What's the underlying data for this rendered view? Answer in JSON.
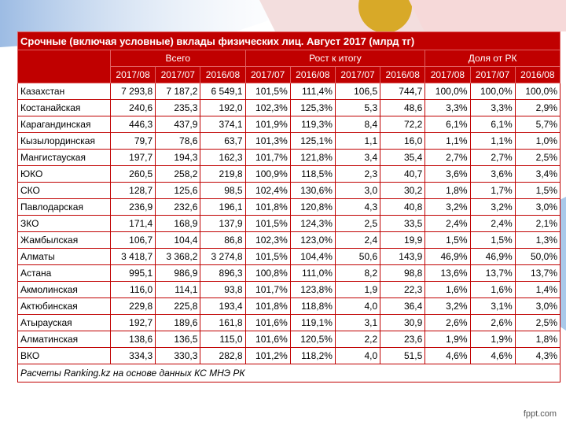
{
  "title": "Срочные (включая условные) вклады физических лиц. Август 2017 (млрд тг)",
  "table": {
    "group_headers": [
      "Всего",
      "Рост к итогу",
      "Доля от РК"
    ],
    "sub_headers": [
      "2017/08",
      "2017/07",
      "2016/08",
      "2017/07",
      "2016/08",
      "2017/07",
      "2016/08",
      "2017/08",
      "2017/07",
      "2016/08"
    ],
    "rows": [
      [
        "Казахстан",
        "7 293,8",
        "7 187,2",
        "6 549,1",
        "101,5%",
        "111,4%",
        "106,5",
        "744,7",
        "100,0%",
        "100,0%",
        "100,0%"
      ],
      [
        "Костанайская",
        "240,6",
        "235,3",
        "192,0",
        "102,3%",
        "125,3%",
        "5,3",
        "48,6",
        "3,3%",
        "3,3%",
        "2,9%"
      ],
      [
        "Карагандинская",
        "446,3",
        "437,9",
        "374,1",
        "101,9%",
        "119,3%",
        "8,4",
        "72,2",
        "6,1%",
        "6,1%",
        "5,7%"
      ],
      [
        "Кызылординская",
        "79,7",
        "78,6",
        "63,7",
        "101,3%",
        "125,1%",
        "1,1",
        "16,0",
        "1,1%",
        "1,1%",
        "1,0%"
      ],
      [
        "Мангистауская",
        "197,7",
        "194,3",
        "162,3",
        "101,7%",
        "121,8%",
        "3,4",
        "35,4",
        "2,7%",
        "2,7%",
        "2,5%"
      ],
      [
        "ЮКО",
        "260,5",
        "258,2",
        "219,8",
        "100,9%",
        "118,5%",
        "2,3",
        "40,7",
        "3,6%",
        "3,6%",
        "3,4%"
      ],
      [
        "СКО",
        "128,7",
        "125,6",
        "98,5",
        "102,4%",
        "130,6%",
        "3,0",
        "30,2",
        "1,8%",
        "1,7%",
        "1,5%"
      ],
      [
        "Павлодарская",
        "236,9",
        "232,6",
        "196,1",
        "101,8%",
        "120,8%",
        "4,3",
        "40,8",
        "3,2%",
        "3,2%",
        "3,0%"
      ],
      [
        "ЗКО",
        "171,4",
        "168,9",
        "137,9",
        "101,5%",
        "124,3%",
        "2,5",
        "33,5",
        "2,4%",
        "2,4%",
        "2,1%"
      ],
      [
        "Жамбылская",
        "106,7",
        "104,4",
        "86,8",
        "102,3%",
        "123,0%",
        "2,4",
        "19,9",
        "1,5%",
        "1,5%",
        "1,3%"
      ],
      [
        "Алматы",
        "3 418,7",
        "3 368,2",
        "3 274,8",
        "101,5%",
        "104,4%",
        "50,6",
        "143,9",
        "46,9%",
        "46,9%",
        "50,0%"
      ],
      [
        "Астана",
        "995,1",
        "986,9",
        "896,3",
        "100,8%",
        "111,0%",
        "8,2",
        "98,8",
        "13,6%",
        "13,7%",
        "13,7%"
      ],
      [
        "Акмолинская",
        "116,0",
        "114,1",
        "93,8",
        "101,7%",
        "123,8%",
        "1,9",
        "22,3",
        "1,6%",
        "1,6%",
        "1,4%"
      ],
      [
        "Актюбинская",
        "229,8",
        "225,8",
        "193,4",
        "101,8%",
        "118,8%",
        "4,0",
        "36,4",
        "3,2%",
        "3,1%",
        "3,0%"
      ],
      [
        "Атырауская",
        "192,7",
        "189,6",
        "161,8",
        "101,6%",
        "119,1%",
        "3,1",
        "30,9",
        "2,6%",
        "2,6%",
        "2,5%"
      ],
      [
        "Алматинская",
        "138,6",
        "136,5",
        "115,0",
        "101,6%",
        "120,5%",
        "2,2",
        "23,6",
        "1,9%",
        "1,9%",
        "1,8%"
      ],
      [
        "ВКО",
        "334,3",
        "330,3",
        "282,8",
        "101,2%",
        "118,2%",
        "4,0",
        "51,5",
        "4,6%",
        "4,6%",
        "4,3%"
      ]
    ]
  },
  "footnote": "Расчеты Ranking.kz на основе данных КС МНЭ РК",
  "watermark": "fppt.com"
}
